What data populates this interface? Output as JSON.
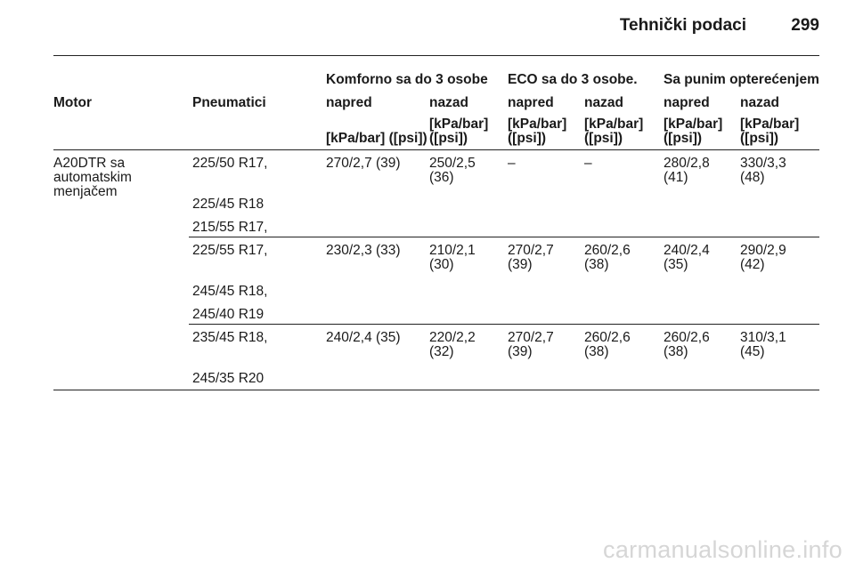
{
  "header": {
    "title": "Tehnički podaci",
    "page_number": "299"
  },
  "table": {
    "group_headers": [
      "Komforno sa do 3 osobe",
      "ECO sa do 3 osobe.",
      "Sa punim opterećenjem"
    ],
    "col_motor": "Motor",
    "col_tyres": "Pneumatici",
    "sub_headers": [
      "napred",
      "nazad",
      "napred",
      "nazad",
      "napred",
      "nazad"
    ],
    "units": [
      "[kPa/bar] ([psi])",
      "[kPa/bar] ([psi])",
      "[kPa/bar] ([psi])",
      "[kPa/bar] ([psi])",
      "[kPa/bar] ([psi])",
      "[kPa/bar] ([psi])"
    ],
    "motor": "A20DTR sa automatskim menjačem",
    "groups": [
      {
        "tyres": [
          "225/50 R17,",
          "225/45 R18",
          "215/55 R17,"
        ],
        "values": [
          "270/2,7 (39)",
          "250/2,5 (36)",
          "–",
          "–",
          "280/2,8 (41)",
          "330/3,3 (48)"
        ]
      },
      {
        "tyres": [
          "225/55 R17,",
          "245/45 R18,",
          "245/40 R19"
        ],
        "values": [
          "230/2,3 (33)",
          "210/2,1 (30)",
          "270/2,7 (39)",
          "260/2,6 (38)",
          "240/2,4 (35)",
          "290/2,9 (42)"
        ]
      },
      {
        "tyres": [
          "235/45 R18,",
          "245/35 R20"
        ],
        "values": [
          "240/2,4 (35)",
          "220/2,2 (32)",
          "270/2,7 (39)",
          "260/2,6 (38)",
          "260/2,6 (38)",
          "310/3,1 (45)"
        ]
      }
    ]
  },
  "watermark": "carmanualsonline.info"
}
